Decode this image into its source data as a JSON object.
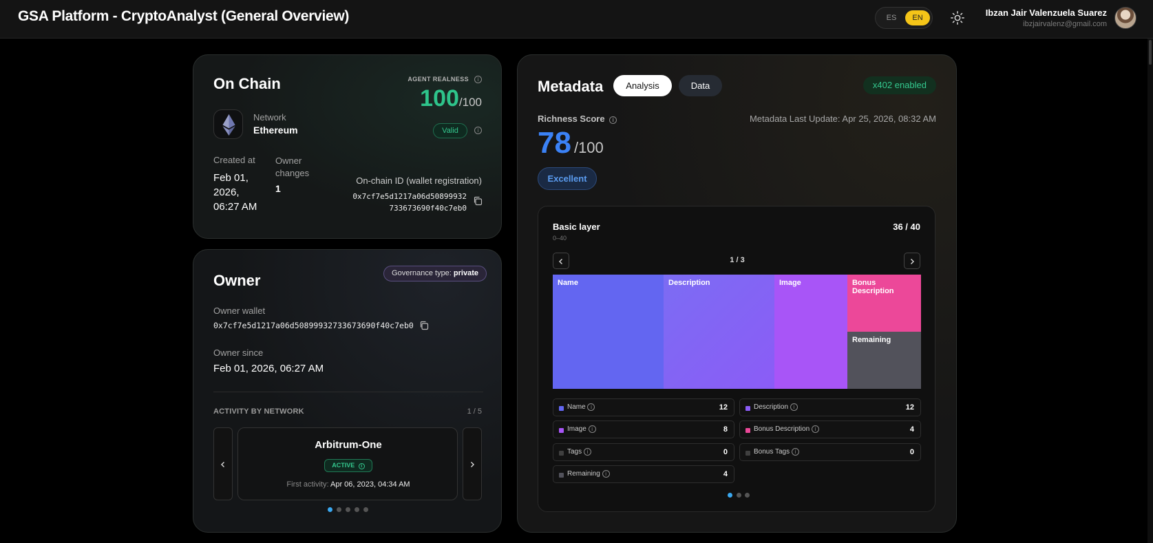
{
  "header": {
    "title": "GSA Platform - CryptoAnalyst (General Overview)",
    "lang_es": "ES",
    "lang_en": "EN",
    "theme_icon": "sun-icon",
    "user_name": "Ibzan Jair Valenzuela Suarez",
    "user_email": "ibzjairvalenz@gmail.com"
  },
  "onchain": {
    "title": "On Chain",
    "realness_label": "AGENT REALNESS",
    "realness_value": "100",
    "realness_max": "/100",
    "valid_label": "Valid",
    "network_label": "Network",
    "network_value": "Ethereum",
    "network_icon": "ethereum-icon",
    "created_label": "Created at",
    "created_line1": "Feb 01,",
    "created_line2": "2026,",
    "created_line3": "06:27 AM",
    "owner_changes_line1": "Owner",
    "owner_changes_line2": "changes",
    "owner_changes_value": "1",
    "onchain_id_label": "On-chain ID (wallet registration)",
    "onchain_id_line1": "0x7cf7e5d1217a06d50899932",
    "onchain_id_line2": "733673690f40c7eb0"
  },
  "owner": {
    "title": "Owner",
    "governance_prefix": "Governance type: ",
    "governance_value": "private",
    "wallet_label": "Owner wallet",
    "wallet_value": "0x7cf7e5d1217a06d50899932733673690f40c7eb0",
    "since_label": "Owner since",
    "since_value": "Feb 01, 2026, 06:27 AM",
    "activity_label": "ACTIVITY BY NETWORK",
    "activity_page": "1 / 5",
    "activity_network": "Arbitrum-One",
    "activity_status": "ACTIVE",
    "first_activity_label": "First activity: ",
    "first_activity_value": "Apr 06, 2023, 04:34 AM",
    "dots_total": 5,
    "dots_active": 0
  },
  "metadata": {
    "title": "Metadata",
    "tab_analysis": "Analysis",
    "tab_data": "Data",
    "x402": "x402 enabled",
    "richness_label": "Richness Score",
    "richness_value": "78",
    "richness_max": "/100",
    "last_update": "Metadata Last Update: Apr 25, 2026, 08:32 AM",
    "grade": "Excellent",
    "layer_title": "Basic layer",
    "layer_range": "0–40",
    "layer_score": "36 / 40",
    "layer_page": "1 / 3",
    "treemap": {
      "name": "Name",
      "description": "Description",
      "image": "Image",
      "bonus_description": "Bonus Description",
      "remaining": "Remaining"
    },
    "legend": [
      {
        "label": "Name",
        "value": "12",
        "color": "#6366f1"
      },
      {
        "label": "Description",
        "value": "12",
        "color": "#8b5cf6"
      },
      {
        "label": "Image",
        "value": "8",
        "color": "#a855f7"
      },
      {
        "label": "Bonus Description",
        "value": "4",
        "color": "#ec4899"
      },
      {
        "label": "Tags",
        "value": "0",
        "color": "#3f3f3f"
      },
      {
        "label": "Bonus Tags",
        "value": "0",
        "color": "#3f3f3f"
      },
      {
        "label": "Remaining",
        "value": "4",
        "color": "#52525b"
      }
    ],
    "dots_total": 3,
    "dots_active": 0
  },
  "colors": {
    "accent_green": "#2ec48b",
    "accent_blue": "#3b82f6",
    "lang_active": "#f5c518"
  }
}
